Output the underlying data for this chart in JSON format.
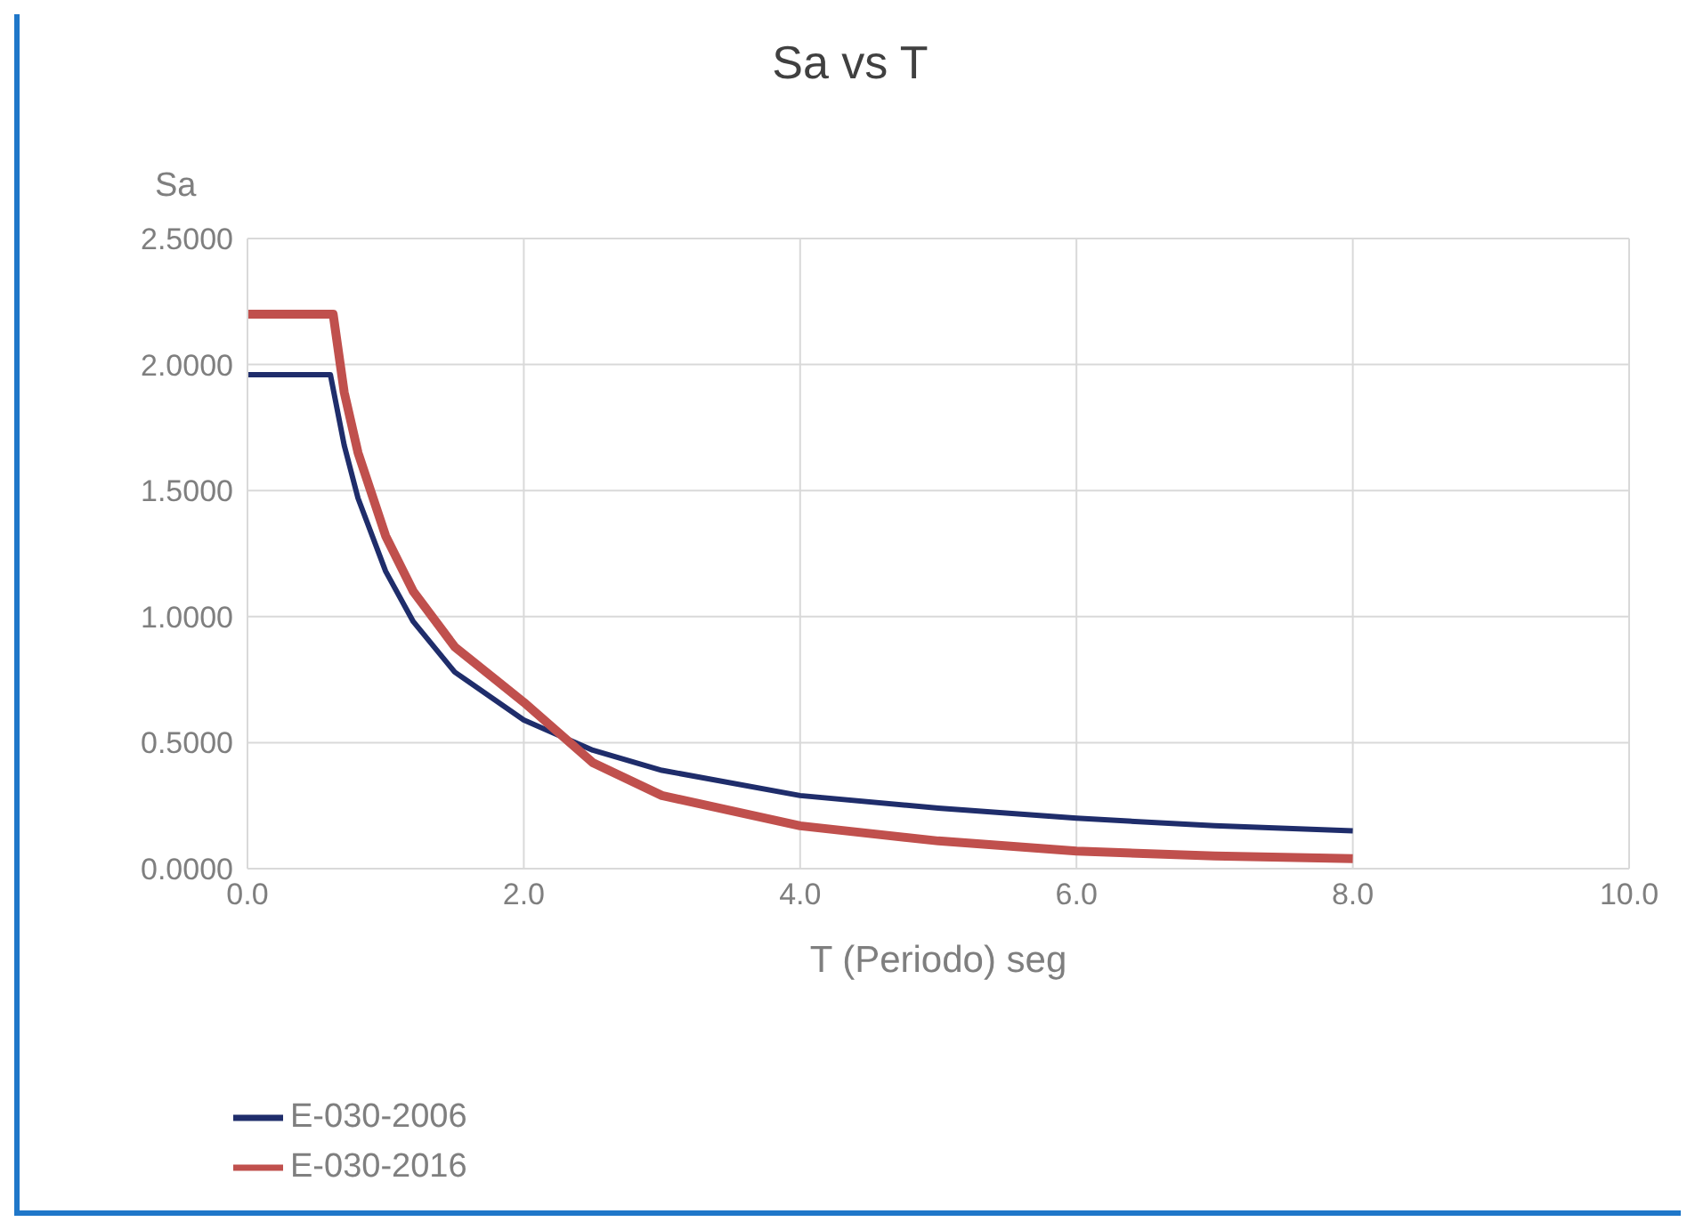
{
  "chart_data": {
    "type": "line",
    "title": "Sa vs T",
    "xlabel": "T (Periodo) seg",
    "ylabel": "Sa",
    "series": [
      {
        "name": "E-030-2006",
        "color": "#1f2d6b",
        "x": [
          0,
          0.55,
          0.6,
          0.7,
          0.8,
          1.0,
          1.2,
          1.5,
          2.0,
          2.5,
          3,
          4,
          5,
          6,
          7,
          8
        ],
        "values": [
          1.96,
          1.96,
          1.96,
          1.68,
          1.47,
          1.18,
          0.98,
          0.78,
          0.59,
          0.47,
          0.39,
          0.29,
          0.24,
          0.2,
          0.17,
          0.15
        ]
      },
      {
        "name": "E-030-2016",
        "color": "#c0504d",
        "x": [
          0,
          0.58,
          0.62,
          0.7,
          0.8,
          1.0,
          1.2,
          1.5,
          2.0,
          2.5,
          3,
          4,
          5,
          6,
          7,
          8
        ],
        "values": [
          2.2,
          2.2,
          2.2,
          1.89,
          1.65,
          1.32,
          1.1,
          0.88,
          0.66,
          0.42,
          0.29,
          0.17,
          0.11,
          0.07,
          0.05,
          0.04
        ]
      }
    ],
    "xlim": [
      0,
      10
    ],
    "xticks": [
      {
        "value": 0,
        "label": "0.0"
      },
      {
        "value": 2,
        "label": "2.0"
      },
      {
        "value": 4,
        "label": "4.0"
      },
      {
        "value": 6,
        "label": "6.0"
      },
      {
        "value": 8,
        "label": "8.0"
      },
      {
        "value": 10,
        "label": "10.0"
      }
    ],
    "ylim": [
      0,
      2.5
    ],
    "yticks": [
      {
        "value": 0,
        "label": "0.0000"
      },
      {
        "value": 0.5,
        "label": "0.5000"
      },
      {
        "value": 1,
        "label": "1.0000"
      },
      {
        "value": 1.5,
        "label": "1.5000"
      },
      {
        "value": 2,
        "label": "2.0000"
      },
      {
        "value": 2.5,
        "label": "2.5000"
      }
    ],
    "grid": true,
    "legend": "bottom left",
    "marker": "none",
    "line_style": "solid"
  }
}
